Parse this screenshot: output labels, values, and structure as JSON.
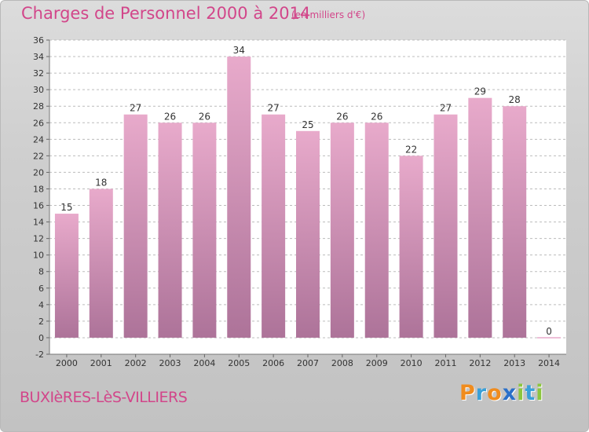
{
  "header": {
    "title": "Charges de Personnel 2000 à 2014",
    "subtitle": "(en milliers d'€)"
  },
  "footer": {
    "commune": "BUXIèRES-LèS-VILLIERS",
    "logo_text": "Proxiti",
    "logo_letters": [
      {
        "ch": "P",
        "color": "#f08c1e"
      },
      {
        "ch": "r",
        "color": "#3aa0d8"
      },
      {
        "ch": "o",
        "color": "#f08c1e"
      },
      {
        "ch": "x",
        "color": "#2a6fc9"
      },
      {
        "ch": "i",
        "color": "#8cc63e"
      },
      {
        "ch": "t",
        "color": "#3aa0d8"
      },
      {
        "ch": "i",
        "color": "#8cc63e"
      }
    ]
  },
  "colors": {
    "bar_top": "#e8aacb",
    "bar_bottom": "#ad7399",
    "plot_bg": "#ffffff",
    "grid": "#bcbcbc",
    "accent_text": "#d2468a",
    "label_text": "#333333"
  },
  "chart_data": {
    "type": "bar",
    "categories": [
      "2000",
      "2001",
      "2002",
      "2003",
      "2004",
      "2005",
      "2006",
      "2007",
      "2008",
      "2009",
      "2010",
      "2011",
      "2012",
      "2013",
      "2014"
    ],
    "values": [
      15,
      18,
      27,
      26,
      26,
      34,
      27,
      25,
      26,
      26,
      22,
      27,
      29,
      28,
      0
    ],
    "data_labels": [
      "15",
      "18",
      "27",
      "26",
      "26",
      "34",
      "27",
      "25",
      "26",
      "26",
      "22",
      "27",
      "29",
      "28",
      "0"
    ],
    "yticks": [
      "-2",
      "0",
      "2",
      "4",
      "6",
      "8",
      "10",
      "12",
      "14",
      "16",
      "18",
      "20",
      "22",
      "24",
      "26",
      "28",
      "30",
      "32",
      "34",
      "36"
    ],
    "ylim": [
      -2,
      36
    ],
    "grid": "horizontal dashed",
    "legend": "none"
  }
}
